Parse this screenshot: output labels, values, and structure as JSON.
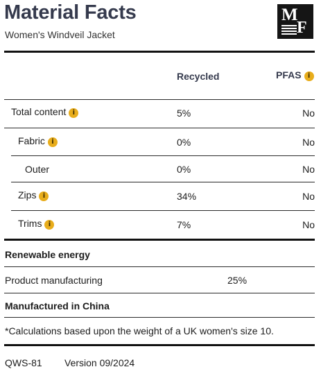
{
  "header": {
    "title": "Material Facts",
    "subtitle": "Women's Windveil Jacket",
    "logo_letters": "MF"
  },
  "columns": {
    "recycled": "Recycled",
    "pfas": "PFAS"
  },
  "rows": [
    {
      "label": "Total content",
      "recycled": "5%",
      "pfas": "No",
      "info": true
    },
    {
      "label": "Fabric",
      "recycled": "0%",
      "pfas": "No",
      "info": true
    },
    {
      "label": "Outer",
      "recycled": "0%",
      "pfas": "No",
      "info": false
    },
    {
      "label": "Zips",
      "recycled": "34%",
      "pfas": "No",
      "info": true
    },
    {
      "label": "Trims",
      "recycled": "7%",
      "pfas": "No",
      "info": true
    }
  ],
  "renewable": {
    "heading": "Renewable energy",
    "label": "Product manufacturing",
    "value": "25%"
  },
  "origin": "Manufactured in China",
  "footnote": "*Calculations based upon the weight of a UK women's size 10.",
  "footer": {
    "code": "QWS-81",
    "version": "Version 09/2024"
  },
  "colors": {
    "title": "#353a4d",
    "info_badge": "#e8ad1c",
    "logo_bg": "#151515"
  },
  "icons": {
    "info": "info-icon"
  }
}
